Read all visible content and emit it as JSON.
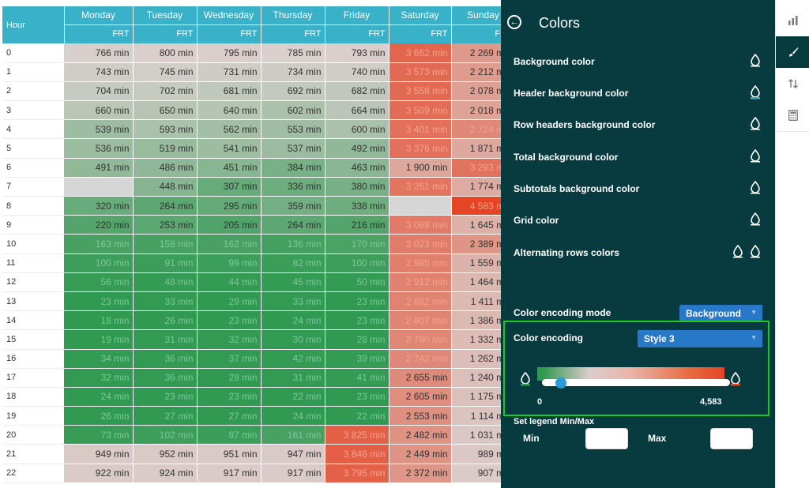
{
  "table": {
    "corner_label": "Hour",
    "days": [
      "Monday",
      "Tuesday",
      "Wednesday",
      "Thursday",
      "Friday",
      "Saturday",
      "Sunday"
    ],
    "sub_label": "FRT",
    "rows": [
      {
        "hour": "0",
        "cells": [
          "766 min",
          "800 min",
          "795 min",
          "785 min",
          "793 min",
          "3 662 min",
          "2 269 min"
        ]
      },
      {
        "hour": "1",
        "cells": [
          "743 min",
          "745 min",
          "731 min",
          "734 min",
          "740 min",
          "3 573 min",
          "2 212 min"
        ]
      },
      {
        "hour": "2",
        "cells": [
          "704 min",
          "702 min",
          "681 min",
          "692 min",
          "682 min",
          "3 558 min",
          "2 078 min"
        ]
      },
      {
        "hour": "3",
        "cells": [
          "660 min",
          "650 min",
          "640 min",
          "602 min",
          "664 min",
          "3 509 min",
          "2 018 min"
        ]
      },
      {
        "hour": "4",
        "cells": [
          "539 min",
          "593 min",
          "562 min",
          "553 min",
          "600 min",
          "3 401 min",
          "2 724 min"
        ]
      },
      {
        "hour": "5",
        "cells": [
          "536 min",
          "519 min",
          "541 min",
          "537 min",
          "492 min",
          "3 376 min",
          "1 871 min"
        ]
      },
      {
        "hour": "6",
        "cells": [
          "491 min",
          "486 min",
          "451 min",
          "384 min",
          "463 min",
          "1 900 min",
          "3 293 min"
        ]
      },
      {
        "hour": "7",
        "cells": [
          "",
          "448 min",
          "307 min",
          "336 min",
          "380 min",
          "3 261 min",
          "1 774 min"
        ]
      },
      {
        "hour": "8",
        "cells": [
          "320 min",
          "264 min",
          "295 min",
          "359 min",
          "338 min",
          "",
          "4 583 min"
        ]
      },
      {
        "hour": "9",
        "cells": [
          "220 min",
          "253 min",
          "205 min",
          "264 min",
          "216 min",
          "3 089 min",
          "1 645 min"
        ]
      },
      {
        "hour": "10",
        "cells": [
          "163 min",
          "158 min",
          "162 min",
          "136 min",
          "170 min",
          "3 023 min",
          "2 389 min"
        ]
      },
      {
        "hour": "11",
        "cells": [
          "100 min",
          "91 min",
          "99 min",
          "82 min",
          "100 min",
          "2 985 min",
          "1 559 min"
        ]
      },
      {
        "hour": "12",
        "cells": [
          "56 min",
          "48 min",
          "44 min",
          "45 min",
          "50 min",
          "2 912 min",
          "1 464 min"
        ]
      },
      {
        "hour": "13",
        "cells": [
          "23 min",
          "33 min",
          "29 min",
          "33 min",
          "23 min",
          "2 882 min",
          "1 411 min"
        ]
      },
      {
        "hour": "14",
        "cells": [
          "18 min",
          "26 min",
          "23 min",
          "24 min",
          "23 min",
          "2 807 min",
          "1 386 min"
        ]
      },
      {
        "hour": "15",
        "cells": [
          "19 min",
          "31 min",
          "32 min",
          "30 min",
          "28 min",
          "2 780 min",
          "1 332 min"
        ]
      },
      {
        "hour": "16",
        "cells": [
          "34 min",
          "36 min",
          "37 min",
          "42 min",
          "39 min",
          "2 742 min",
          "1 262 min"
        ]
      },
      {
        "hour": "17",
        "cells": [
          "32 min",
          "36 min",
          "28 min",
          "31 min",
          "41 min",
          "2 655 min",
          "1 240 min"
        ]
      },
      {
        "hour": "18",
        "cells": [
          "24 min",
          "23 min",
          "23 min",
          "22 min",
          "23 min",
          "2 605 min",
          "1 175 min"
        ]
      },
      {
        "hour": "19",
        "cells": [
          "26 min",
          "27 min",
          "27 min",
          "24 min",
          "22 min",
          "2 553 min",
          "1 114 min"
        ]
      },
      {
        "hour": "20",
        "cells": [
          "73 min",
          "102 min",
          "87 min",
          "161 min",
          "3 825 min",
          "2 482 min",
          "1 031 min"
        ]
      },
      {
        "hour": "21",
        "cells": [
          "949 min",
          "952 min",
          "951 min",
          "947 min",
          "3 846 min",
          "2 449 min",
          "989 min"
        ]
      },
      {
        "hour": "22",
        "cells": [
          "922 min",
          "924 min",
          "917 min",
          "917 min",
          "3 795 min",
          "2 372 min",
          "907 min"
        ]
      }
    ]
  },
  "panel": {
    "title": "Colors",
    "back_icon": "back-arrow-icon",
    "options": [
      {
        "label": "Background color",
        "icon": "droplet-icon",
        "indicator": ""
      },
      {
        "label": "Header background color",
        "icon": "droplet-icon",
        "indicator": "#38b1c9"
      },
      {
        "label": "Row headers background color",
        "icon": "droplet-icon",
        "indicator": ""
      },
      {
        "label": "Total background color",
        "icon": "droplet-icon",
        "indicator": ""
      },
      {
        "label": "Subtotals background color",
        "icon": "droplet-icon",
        "indicator": ""
      },
      {
        "label": "Grid color",
        "icon": "droplet-icon",
        "indicator": ""
      },
      {
        "label": "Alternating rows colors",
        "icon": "droplet-icon",
        "indicator": ""
      }
    ],
    "mode_label": "Color encoding mode",
    "mode_value": "Background",
    "encoding_label": "Color encoding",
    "encoding_value": "Style 3",
    "range_min": "0",
    "range_max": "4,583",
    "slider_value_fraction": 0.1,
    "legend_label": "Set legend Min/Max",
    "min_label": "Min",
    "max_label": "Max",
    "min_value": "",
    "max_value": "",
    "colors": {
      "panel_bg": "#073b40",
      "highlight_border": "#1dc91d",
      "select_bg": "#2878c8",
      "low_color": "#2e9950",
      "high_color": "#e54425",
      "header_bg": "#38b1c9"
    }
  },
  "toolbar": {
    "items": [
      {
        "icon": "bar-chart-icon",
        "active": false
      },
      {
        "icon": "brush-icon",
        "active": true
      },
      {
        "icon": "sort-icon",
        "active": false
      },
      {
        "icon": "calculator-icon",
        "active": false
      }
    ]
  }
}
